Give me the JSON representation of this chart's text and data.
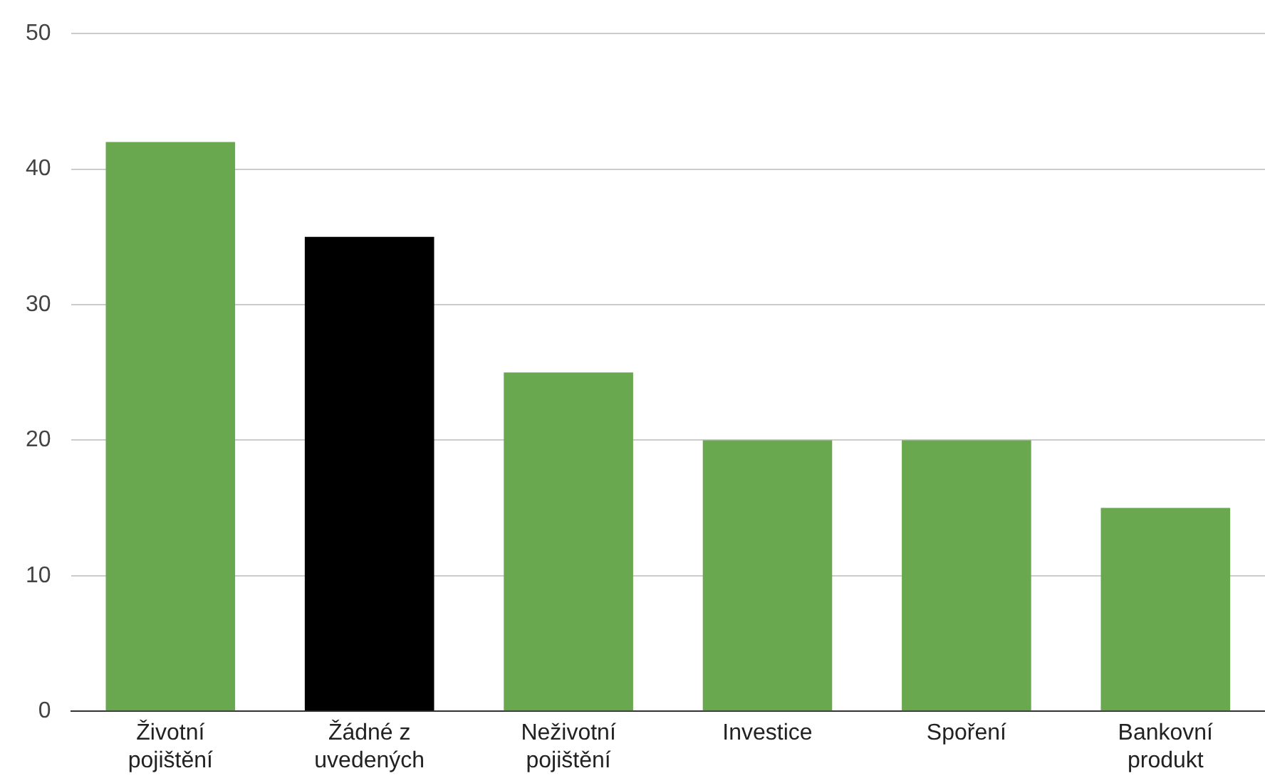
{
  "chart_data": {
    "type": "bar",
    "categories": [
      "Životní pojištění",
      "Žádné z uvedených",
      "Neživotní pojištění",
      "Investice",
      "Spoření",
      "Bankovní produkt"
    ],
    "values": [
      42,
      35,
      25,
      20,
      20,
      15
    ],
    "colors": [
      "#6aa84f",
      "#000000",
      "#6aa84f",
      "#6aa84f",
      "#6aa84f",
      "#6aa84f"
    ],
    "ylim": [
      0,
      50
    ],
    "yticks": [
      0,
      10,
      20,
      30,
      40,
      50
    ],
    "grid": "y",
    "legend": false
  }
}
